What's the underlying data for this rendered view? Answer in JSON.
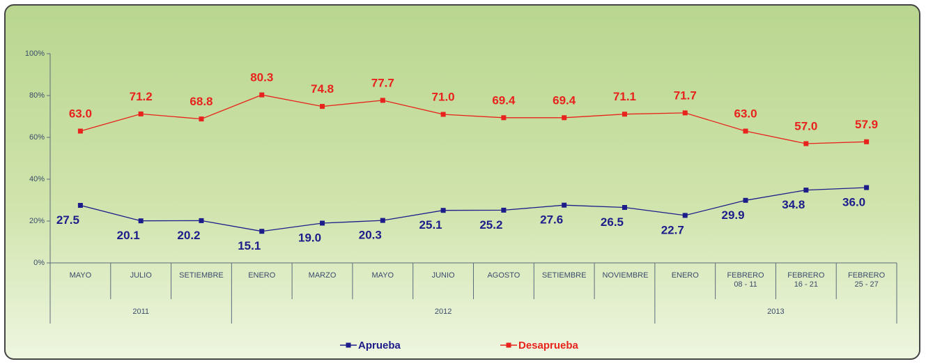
{
  "chart_data": {
    "type": "line",
    "categories": [
      "MAYO",
      "JULIO",
      "SETIEMBRE",
      "ENERO",
      "MARZO",
      "MAYO",
      "JUNIO",
      "AGOSTO",
      "SETIEMBRE",
      "NOVIEMBRE",
      "ENERO",
      "FEBRERO 08 - 11",
      "FEBRERO 16 - 21",
      "FEBRERO 25 - 27"
    ],
    "group_labels": [
      "2011",
      "2012",
      "2013"
    ],
    "group_sizes": [
      3,
      7,
      4
    ],
    "series": [
      {
        "name": "Aprueba",
        "color": "#1c1c8a",
        "values": [
          27.5,
          20.1,
          20.2,
          15.1,
          19.0,
          20.3,
          25.1,
          25.2,
          27.6,
          26.5,
          22.7,
          29.9,
          34.8,
          36.0
        ],
        "value_labels": [
          "27.5",
          "20.1",
          "20.2",
          "15.1",
          "19.0",
          "20.3",
          "25.1",
          "25.2",
          "27.6",
          "26.5",
          "22.7",
          "29.9",
          "34.8",
          "36.0"
        ]
      },
      {
        "name": "Desaprueba",
        "color": "#e8221c",
        "values": [
          63.0,
          71.2,
          68.8,
          80.3,
          74.8,
          77.7,
          71.0,
          69.4,
          69.4,
          71.1,
          71.7,
          63.0,
          57.0,
          57.9
        ],
        "value_labels": [
          "63.0",
          "71.2",
          "68.8",
          "80.3",
          "74.8",
          "77.7",
          "71.0",
          "69.4",
          "69.4",
          "71.1",
          "71.7",
          "63.0",
          "57.0",
          "57.9"
        ]
      }
    ],
    "ylim": [
      0,
      100
    ],
    "yticks": [
      {
        "value": 0,
        "label": "0%"
      },
      {
        "value": 20,
        "label": "20%"
      },
      {
        "value": 40,
        "label": "40%"
      },
      {
        "value": 60,
        "label": "60%"
      },
      {
        "value": 80,
        "label": "80%"
      },
      {
        "value": 100,
        "label": "100%"
      }
    ],
    "legend": "bottom"
  }
}
